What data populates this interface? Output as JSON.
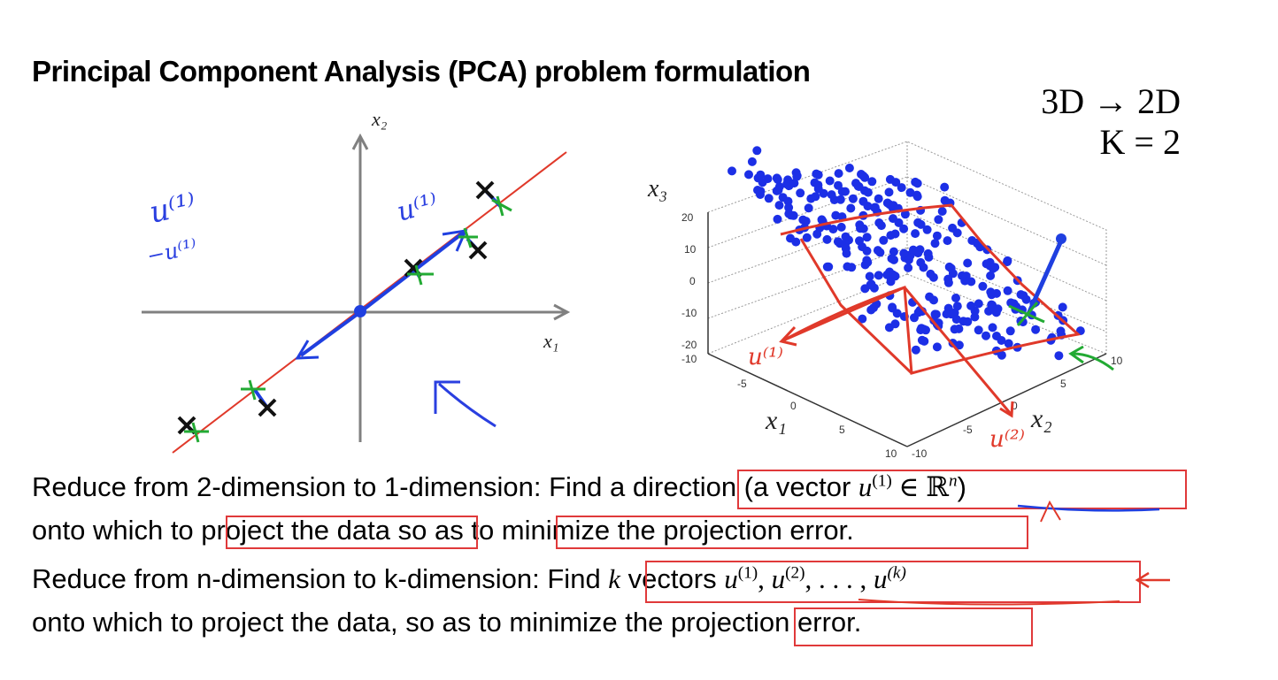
{
  "slide": {
    "title": "Principal Component Analysis (PCA) problem formulation",
    "dim_line1": "3D → 2D",
    "dim_line2": "K = 2"
  },
  "plot2d": {
    "x_axis_label": "x₁",
    "y_axis_label": "x₂",
    "annot_u1_left": "u⁽¹⁾",
    "annot_neg_u1_left": "−u⁽¹⁾",
    "annot_u1_center": "u⁽¹⁾"
  },
  "plot3d": {
    "z_axis_label": "x₃",
    "x_axis_label": "x₁",
    "y_axis_label": "x₂",
    "z_ticks": [
      "20",
      "10",
      "0",
      "-10",
      "-20"
    ],
    "x_ticks": [
      "-10",
      "-5",
      "0",
      "5",
      "10"
    ],
    "y_ticks": [
      "-10",
      "-5",
      "0",
      "5",
      "10"
    ],
    "annot_u1": "u⁽¹⁾",
    "annot_u2": "u⁽²⁾"
  },
  "text": {
    "l1_a": "Reduce from 2-dimension to 1-dimension: Find a ",
    "l1_b": "direction (a vector ",
    "l1_u": "u",
    "l1_sup": "(1)",
    "l1_c": " ∈ ℝ",
    "l1_n": "n",
    "l1_d": ")",
    "l2_a": "onto which to ",
    "l2_b": "project the data",
    "l2_c": " so as ",
    "l2_d": "to minimize the projection error.",
    "l3_a": "Reduce from n-dimension to k-dimension: ",
    "l3_b": "Find ",
    "l3_k": "k",
    "l3_c": " vectors ",
    "l3_u": "u",
    "l3_s1": "(1)",
    "l3_s2": "(2)",
    "l3_sk": "(k)",
    "l3_dots": ", . . . , ",
    "l3_comma": ", ",
    "l4_a": "onto which to project the data, so as to minimize the ",
    "l4_b": "projection error."
  }
}
